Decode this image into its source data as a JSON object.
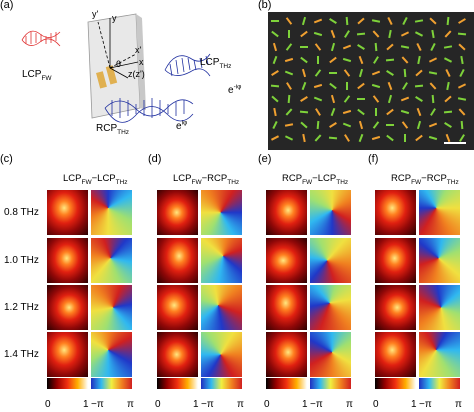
{
  "panel_labels": [
    "(a)",
    "(b)",
    "(c)",
    "(d)",
    "(e)",
    "(f)"
  ],
  "schematic": {
    "lcp_fw": {
      "main": "LCP",
      "sub": "FW"
    },
    "lcp_thz": {
      "main": "LCP",
      "sub": "THz"
    },
    "rcp_thz": {
      "main": "RCP",
      "sub": "THz"
    },
    "axes": [
      "y'",
      "y",
      "x'",
      "x",
      "z(z')",
      "θ"
    ],
    "phase_minus": {
      "main": "e",
      "sup": "-iφ"
    },
    "phase_plus": {
      "main": "e",
      "sup": "iφ"
    }
  },
  "columns": [
    {
      "a": "LCP",
      "a_sub": "FW",
      "sep": "−",
      "b": "LCP",
      "b_sub": "THz"
    },
    {
      "a": "LCP",
      "a_sub": "FW",
      "sep": "−",
      "b": "RCP",
      "b_sub": "THz"
    },
    {
      "a": "RCP",
      "a_sub": "FW",
      "sep": "−",
      "b": "LCP",
      "b_sub": "THz"
    },
    {
      "a": "RCP",
      "a_sub": "FW",
      "sep": "−",
      "b": "RCP",
      "b_sub": "THz"
    }
  ],
  "rows": [
    "0.8 THz",
    "1.0 THz",
    "1.2 THz",
    "1.4 THz"
  ],
  "colorbar": {
    "intensity": [
      "0",
      "1"
    ],
    "phase": [
      "−π",
      "π"
    ]
  }
}
